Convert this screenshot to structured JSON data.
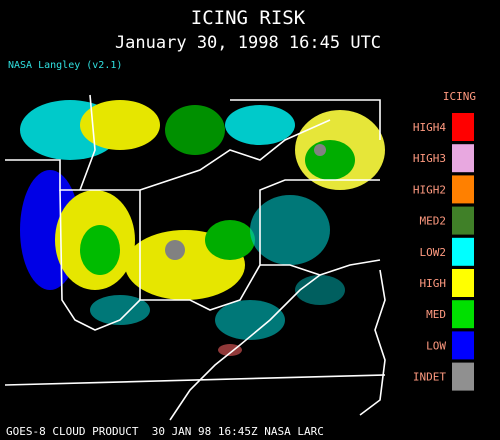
{
  "header": {
    "title": "ICING RISK",
    "subtitle": "January 30, 1998 16:45 UTC",
    "credit": "NASA Langley (v2.1)"
  },
  "legend": {
    "title": "ICING",
    "items": [
      {
        "label": "HIGH4",
        "color": "#ff0000"
      },
      {
        "label": "HIGH3",
        "color": "#e8a8e0"
      },
      {
        "label": "HIGH2",
        "color": "#ff8000"
      },
      {
        "label": "MED2",
        "color": "#408028"
      },
      {
        "label": "LOW2",
        "color": "#00ffff"
      },
      {
        "label": "HIGH",
        "color": "#ffff00"
      },
      {
        "label": "MED",
        "color": "#00e000"
      },
      {
        "label": "LOW",
        "color": "#0000ff"
      },
      {
        "label": "INDET",
        "color": "#909090"
      }
    ]
  },
  "footer": "GOES-8 CLOUD PRODUCT  30 JAN 98 16:45Z NASA LARC"
}
